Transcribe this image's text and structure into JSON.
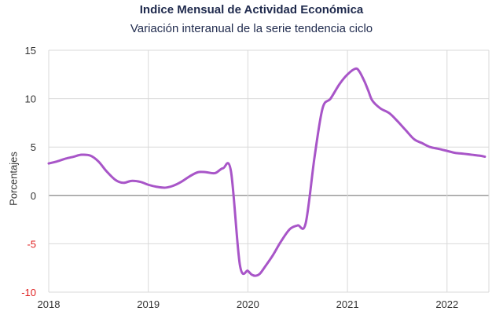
{
  "chart_data": {
    "type": "line",
    "title": "Indice Mensual de  Actividad Económica",
    "subtitle": "Variación interanual de la serie tendencia ciclo",
    "ylabel": "Porcentajes",
    "xlabel": "",
    "ylim": [
      -10,
      15
    ],
    "xlim": [
      2018,
      2022.42
    ],
    "yticks": [
      15,
      10,
      5,
      0,
      -5,
      -10
    ],
    "xticks": [
      2018,
      2019,
      2020,
      2021,
      2022
    ],
    "grid": true,
    "line_color": "#a855c8",
    "negative_tick_color": "#e02020",
    "series": [
      {
        "x": [
          2018.0,
          2018.08,
          2018.17,
          2018.25,
          2018.33,
          2018.42,
          2018.5,
          2018.58,
          2018.67,
          2018.75,
          2018.83,
          2018.92,
          2019.0,
          2019.08,
          2019.17,
          2019.25,
          2019.33,
          2019.42,
          2019.5,
          2019.58,
          2019.67,
          2019.75,
          2019.83,
          2019.92,
          2020.0,
          2020.04,
          2020.08,
          2020.12,
          2020.17,
          2020.25,
          2020.33,
          2020.42,
          2020.5,
          2020.58,
          2020.67,
          2020.75,
          2020.83,
          2020.92,
          2021.0,
          2021.08,
          2021.12,
          2021.17,
          2021.21,
          2021.25,
          2021.33,
          2021.42,
          2021.5,
          2021.58,
          2021.67,
          2021.75,
          2021.83,
          2021.92,
          2022.0,
          2022.08,
          2022.17,
          2022.25,
          2022.33,
          2022.38
        ],
        "y": [
          3.3,
          3.5,
          3.8,
          4.0,
          4.2,
          4.1,
          3.5,
          2.5,
          1.6,
          1.3,
          1.5,
          1.4,
          1.1,
          0.9,
          0.8,
          1.0,
          1.4,
          2.0,
          2.4,
          2.4,
          2.3,
          2.8,
          2.5,
          -7.2,
          -7.8,
          -8.2,
          -8.3,
          -8.1,
          -7.4,
          -6.2,
          -4.8,
          -3.5,
          -3.1,
          -2.9,
          4.0,
          9.0,
          10.0,
          11.5,
          12.5,
          13.1,
          12.8,
          11.8,
          10.8,
          9.8,
          9.0,
          8.5,
          7.7,
          6.8,
          5.8,
          5.4,
          5.0,
          4.8,
          4.6,
          4.4,
          4.3,
          4.2,
          4.1,
          4.0
        ]
      }
    ]
  }
}
